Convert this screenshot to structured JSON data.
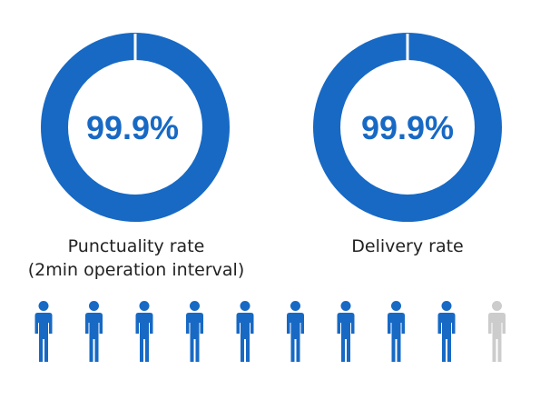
{
  "chart_data": [
    {
      "type": "donut",
      "value_percent": 99.9,
      "center_label": "99.9%",
      "caption_lines": [
        "Punctuality rate",
        "(2min operation interval)"
      ],
      "color": "#1769c4"
    },
    {
      "type": "donut",
      "value_percent": 99.9,
      "center_label": "99.9%",
      "caption_lines": [
        "Delivery rate"
      ],
      "color": "#1769c4"
    },
    {
      "type": "pictogram",
      "icon": "person-icon",
      "total": 10,
      "highlighted": 9,
      "highlight_color": "#1769c4",
      "base_color": "#cccccc"
    }
  ],
  "colors": {
    "accent": "#1769c4",
    "muted": "#cccccc",
    "ring_gap": "#ffffff"
  }
}
